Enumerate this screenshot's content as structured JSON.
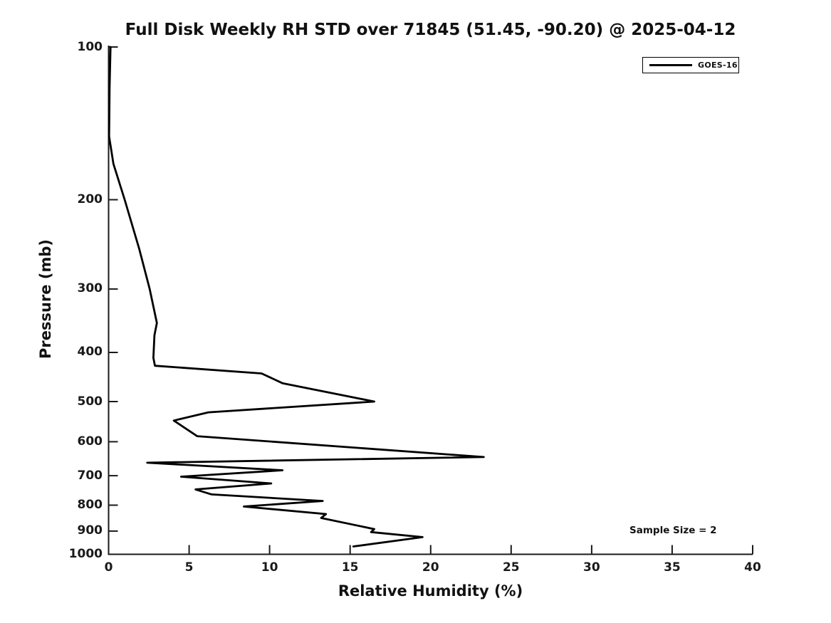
{
  "chart_data": {
    "type": "line",
    "title": "Full Disk Weekly RH STD over 71845 (51.45, -90.20) @ 2025-04-12",
    "x_axis": {
      "label": "Relative Humidity (%)",
      "ticks": [
        0,
        5,
        10,
        15,
        20,
        25,
        30,
        35,
        40
      ],
      "range": [
        0,
        40
      ],
      "scale": "linear"
    },
    "y_axis": {
      "label": "Pressure (mb)",
      "ticks": [
        100,
        200,
        300,
        400,
        500,
        600,
        700,
        800,
        900,
        1000
      ],
      "range": [
        100,
        1000
      ],
      "scale": "log",
      "inverted": true
    },
    "grid": false,
    "legend_position": "top-right",
    "annotations": [
      "Sample Size = 2"
    ],
    "style": {
      "background": "#ffffff",
      "axis_color": "#1a1a1a",
      "text_color": "#111111"
    },
    "series": [
      {
        "name": "GOES-16",
        "color": "#000000",
        "points_format": "[pressure_mb, rh_std_percent]",
        "points": [
          [
            100,
            0.12
          ],
          [
            120,
            0.06
          ],
          [
            150,
            0.03
          ],
          [
            170,
            0.3
          ],
          [
            200,
            1.0
          ],
          [
            250,
            1.9
          ],
          [
            300,
            2.55
          ],
          [
            350,
            3.0
          ],
          [
            370,
            2.85
          ],
          [
            410,
            2.78
          ],
          [
            425,
            2.88
          ],
          [
            440,
            9.5
          ],
          [
            460,
            10.8
          ],
          [
            500,
            16.5
          ],
          [
            525,
            6.2
          ],
          [
            545,
            4.05
          ],
          [
            585,
            5.5
          ],
          [
            643,
            23.3
          ],
          [
            660,
            2.4
          ],
          [
            683,
            10.8
          ],
          [
            703,
            4.5
          ],
          [
            725,
            10.1
          ],
          [
            745,
            5.4
          ],
          [
            762,
            6.4
          ],
          [
            785,
            13.3
          ],
          [
            805,
            8.4
          ],
          [
            833,
            13.5
          ],
          [
            848,
            13.2
          ],
          [
            892,
            16.5
          ],
          [
            904,
            16.3
          ],
          [
            925,
            19.5
          ],
          [
            965,
            15.2
          ]
        ]
      }
    ]
  }
}
